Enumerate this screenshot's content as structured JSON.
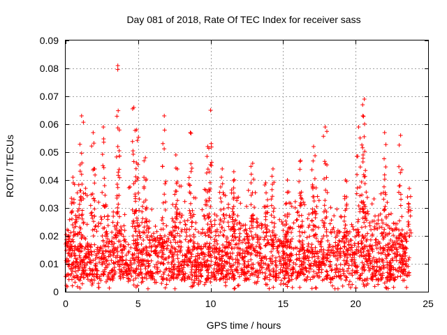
{
  "chart_data": {
    "type": "scatter",
    "title": "Day 081 of 2018, Rate Of TEC Index for receiver sass",
    "xlabel": "GPS time / hours",
    "ylabel": "ROTI / TECUs",
    "xlim": [
      0,
      25
    ],
    "ylim": [
      0,
      0.09
    ],
    "xticks": [
      0,
      5,
      10,
      15,
      20,
      25
    ],
    "xtick_labels": [
      "0",
      "5",
      "10",
      "15",
      "20",
      "25"
    ],
    "yticks": [
      0,
      0.01,
      0.02,
      0.03,
      0.04,
      0.05,
      0.06,
      0.07,
      0.08,
      0.09
    ],
    "ytick_labels": [
      "0",
      "0.01",
      "0.02",
      "0.03",
      "0.04",
      "0.05",
      "0.06",
      "0.07",
      "0.08",
      "0.09"
    ],
    "grid": true,
    "marker": "plus",
    "color": "#ff0000",
    "x_range_covered": [
      0,
      23.7
    ],
    "baseline_band": [
      0.004,
      0.016
    ],
    "peaks": [
      {
        "x": 3.6,
        "y": 0.081
      },
      {
        "x": 20.6,
        "y": 0.069
      },
      {
        "x": 4.7,
        "y": 0.066
      },
      {
        "x": 10.0,
        "y": 0.065
      },
      {
        "x": 1.1,
        "y": 0.063
      },
      {
        "x": 6.8,
        "y": 0.063
      },
      {
        "x": 20.5,
        "y": 0.063
      },
      {
        "x": 17.9,
        "y": 0.059
      },
      {
        "x": 2.6,
        "y": 0.059
      },
      {
        "x": 1.9,
        "y": 0.057
      },
      {
        "x": 8.6,
        "y": 0.057
      },
      {
        "x": 4.9,
        "y": 0.058
      },
      {
        "x": 22.0,
        "y": 0.057
      },
      {
        "x": 20.2,
        "y": 0.059
      },
      {
        "x": 23.1,
        "y": 0.056
      },
      {
        "x": 9.8,
        "y": 0.052
      },
      {
        "x": 17.1,
        "y": 0.052
      },
      {
        "x": 3.6,
        "y": 0.052
      },
      {
        "x": 7.6,
        "y": 0.049
      },
      {
        "x": 5.5,
        "y": 0.048
      },
      {
        "x": 16.2,
        "y": 0.047
      },
      {
        "x": 12.9,
        "y": 0.046
      },
      {
        "x": 10.8,
        "y": 0.044
      },
      {
        "x": 14.3,
        "y": 0.044
      },
      {
        "x": 11.6,
        "y": 0.043
      },
      {
        "x": 0.5,
        "y": 0.041
      },
      {
        "x": 13.8,
        "y": 0.039
      },
      {
        "x": 15.3,
        "y": 0.04
      },
      {
        "x": 19.3,
        "y": 0.04
      },
      {
        "x": 23.7,
        "y": 0.037
      }
    ],
    "activity_envelope": [
      {
        "x": 0,
        "y": 0.024
      },
      {
        "x": 0.5,
        "y": 0.032
      },
      {
        "x": 1.1,
        "y": 0.046
      },
      {
        "x": 1.5,
        "y": 0.034
      },
      {
        "x": 2.0,
        "y": 0.045
      },
      {
        "x": 2.6,
        "y": 0.04
      },
      {
        "x": 3.0,
        "y": 0.024
      },
      {
        "x": 3.6,
        "y": 0.034
      },
      {
        "x": 4.0,
        "y": 0.03
      },
      {
        "x": 4.7,
        "y": 0.047
      },
      {
        "x": 5.2,
        "y": 0.04
      },
      {
        "x": 5.6,
        "y": 0.036
      },
      {
        "x": 6.2,
        "y": 0.029
      },
      {
        "x": 6.8,
        "y": 0.025
      },
      {
        "x": 7.3,
        "y": 0.03
      },
      {
        "x": 7.8,
        "y": 0.04
      },
      {
        "x": 8.3,
        "y": 0.034
      },
      {
        "x": 8.6,
        "y": 0.042
      },
      {
        "x": 9.2,
        "y": 0.03
      },
      {
        "x": 9.9,
        "y": 0.045
      },
      {
        "x": 10.5,
        "y": 0.036
      },
      {
        "x": 11.0,
        "y": 0.038
      },
      {
        "x": 11.6,
        "y": 0.036
      },
      {
        "x": 12.2,
        "y": 0.034
      },
      {
        "x": 12.9,
        "y": 0.038
      },
      {
        "x": 13.5,
        "y": 0.034
      },
      {
        "x": 14.0,
        "y": 0.03
      },
      {
        "x": 14.5,
        "y": 0.027
      },
      {
        "x": 15.0,
        "y": 0.026
      },
      {
        "x": 15.5,
        "y": 0.032
      },
      {
        "x": 16.0,
        "y": 0.035
      },
      {
        "x": 16.5,
        "y": 0.037
      },
      {
        "x": 17.1,
        "y": 0.04
      },
      {
        "x": 17.6,
        "y": 0.034
      },
      {
        "x": 18.0,
        "y": 0.046
      },
      {
        "x": 18.6,
        "y": 0.03
      },
      {
        "x": 19.2,
        "y": 0.028
      },
      {
        "x": 19.8,
        "y": 0.025
      },
      {
        "x": 20.4,
        "y": 0.045
      },
      {
        "x": 20.9,
        "y": 0.04
      },
      {
        "x": 21.4,
        "y": 0.036
      },
      {
        "x": 22.0,
        "y": 0.042
      },
      {
        "x": 22.5,
        "y": 0.034
      },
      {
        "x": 23.0,
        "y": 0.032
      },
      {
        "x": 23.7,
        "y": 0.03
      }
    ]
  }
}
